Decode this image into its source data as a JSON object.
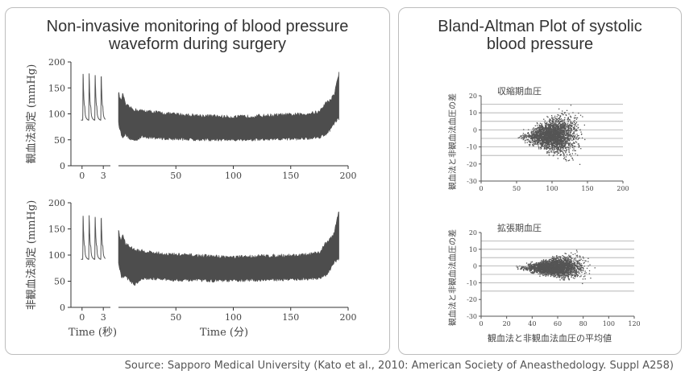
{
  "left_panel": {
    "title_line1": "Non-invasive monitoring of blood pressure",
    "title_line2": "waveform during surgery"
  },
  "right_panel": {
    "title_line1": "Bland-Altman Plot of systolic",
    "title_line2": "blood pressure"
  },
  "source": "Source: Sapporo Medical University (Kato et al., 2010: American Society of Aneasthedology. Suppl A258)",
  "chart_data": [
    {
      "id": "top-left",
      "type": "area",
      "ylabel": "観血法測定 (mmHg)",
      "ylim": [
        0,
        200
      ],
      "yticks": [
        0,
        50,
        100,
        150,
        200
      ],
      "inset": {
        "xlim": [
          -1,
          4
        ],
        "xticks": [
          0,
          3
        ],
        "beat_times": [
          0.1,
          0.95,
          1.8,
          2.65
        ],
        "diastolic": 88,
        "systolic": 178
      },
      "main": {
        "xlim": [
          0,
          200
        ],
        "xticks": [
          50,
          100,
          150,
          200
        ],
        "upper": [
          [
            0,
            143
          ],
          [
            2,
            125
          ],
          [
            4,
            140
          ],
          [
            6,
            118
          ],
          [
            10,
            112
          ],
          [
            14,
            108
          ],
          [
            20,
            106
          ],
          [
            30,
            104
          ],
          [
            40,
            101
          ],
          [
            60,
            98
          ],
          [
            80,
            96
          ],
          [
            100,
            94
          ],
          [
            120,
            96
          ],
          [
            140,
            98
          ],
          [
            160,
            99
          ],
          [
            175,
            104
          ],
          [
            180,
            120
          ],
          [
            184,
            126
          ],
          [
            188,
            138
          ],
          [
            190,
            162
          ],
          [
            192,
            178
          ]
        ],
        "lower": [
          [
            0,
            82
          ],
          [
            3,
            55
          ],
          [
            6,
            60
          ],
          [
            10,
            52
          ],
          [
            14,
            48
          ],
          [
            20,
            56
          ],
          [
            30,
            54
          ],
          [
            40,
            52
          ],
          [
            60,
            51
          ],
          [
            80,
            50
          ],
          [
            100,
            50
          ],
          [
            120,
            50
          ],
          [
            140,
            51
          ],
          [
            160,
            52
          ],
          [
            175,
            55
          ],
          [
            180,
            60
          ],
          [
            184,
            68
          ],
          [
            188,
            82
          ],
          [
            190,
            88
          ],
          [
            192,
            90
          ]
        ]
      }
    },
    {
      "id": "bottom-left",
      "type": "area",
      "ylabel": "非観血法測定 (mmHg)",
      "xlabel_left": "Time (秒)",
      "xlabel_right": "Time (分)",
      "ylim": [
        0,
        200
      ],
      "yticks": [
        0,
        50,
        100,
        150,
        200
      ],
      "inset": {
        "xlim": [
          -1,
          4
        ],
        "xticks": [
          0,
          3
        ],
        "beat_times": [
          0.1,
          0.95,
          1.8,
          2.65
        ],
        "diastolic": 92,
        "systolic": 176
      },
      "main": {
        "xlim": [
          0,
          200
        ],
        "xticks": [
          50,
          100,
          150,
          200
        ],
        "upper": [
          [
            0,
            148
          ],
          [
            2,
            128
          ],
          [
            4,
            140
          ],
          [
            6,
            122
          ],
          [
            10,
            116
          ],
          [
            14,
            110
          ],
          [
            20,
            108
          ],
          [
            30,
            105
          ],
          [
            40,
            102
          ],
          [
            60,
            100
          ],
          [
            80,
            98
          ],
          [
            100,
            96
          ],
          [
            120,
            98
          ],
          [
            140,
            99
          ],
          [
            160,
            100
          ],
          [
            175,
            104
          ],
          [
            180,
            122
          ],
          [
            184,
            130
          ],
          [
            188,
            142
          ],
          [
            190,
            168
          ],
          [
            192,
            186
          ]
        ],
        "lower": [
          [
            0,
            82
          ],
          [
            3,
            56
          ],
          [
            6,
            60
          ],
          [
            10,
            50
          ],
          [
            14,
            44
          ],
          [
            20,
            54
          ],
          [
            30,
            55
          ],
          [
            40,
            53
          ],
          [
            60,
            52
          ],
          [
            80,
            51
          ],
          [
            100,
            51
          ],
          [
            120,
            52
          ],
          [
            140,
            53
          ],
          [
            160,
            54
          ],
          [
            175,
            56
          ],
          [
            180,
            60
          ],
          [
            184,
            70
          ],
          [
            188,
            86
          ],
          [
            190,
            90
          ],
          [
            192,
            92
          ]
        ]
      }
    },
    {
      "id": "top-right",
      "type": "scatter",
      "title": "収縮期血圧",
      "ylabel": "観血法と非観血法血圧の差",
      "xlim": [
        0,
        200
      ],
      "xticks": [
        0,
        50,
        100,
        150,
        200
      ],
      "ylim": [
        -30,
        20
      ],
      "yticks": [
        -30,
        -20,
        -10,
        0,
        10,
        20
      ],
      "hlines": [
        -15,
        -10,
        -5,
        0,
        5,
        10,
        15
      ],
      "cluster": {
        "x_center": 100,
        "x_spread": 22,
        "y_center": -3,
        "y_spread": 6,
        "x_min": 50,
        "x_max": 155
      }
    },
    {
      "id": "bottom-right",
      "type": "scatter",
      "title": "拡張期血圧",
      "ylabel": "観血法と非観血法血圧の差",
      "xlabel": "観血法と非観血法血圧の平均値",
      "xlim": [
        0,
        120
      ],
      "xticks": [
        0,
        20,
        40,
        60,
        80,
        100,
        120
      ],
      "ylim": [
        -30,
        20
      ],
      "yticks": [
        -30,
        -20,
        -10,
        0,
        10,
        20
      ],
      "hlines": [
        -15,
        -10,
        -5,
        0,
        5,
        10,
        15
      ],
      "cluster": {
        "x_center": 57,
        "x_spread": 14,
        "y_center": -0.5,
        "y_spread": 3.4,
        "x_min": 22,
        "x_max": 92
      }
    }
  ]
}
